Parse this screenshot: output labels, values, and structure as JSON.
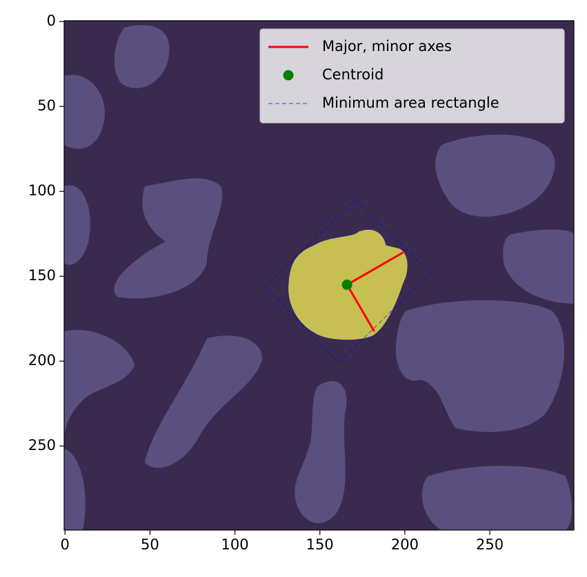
{
  "chart_data": {
    "type": "image-overlay",
    "xlim": [
      -0.5,
      299.5
    ],
    "ylim": [
      299.5,
      -0.5
    ],
    "xticks": [
      0,
      50,
      100,
      150,
      200,
      250
    ],
    "yticks": [
      0,
      50,
      100,
      150,
      200,
      250
    ],
    "legend": "upper right",
    "series": [
      {
        "name": "Major, minor axes",
        "color": "#ff0000",
        "style": "solid",
        "x": [
          182,
          166,
          199
        ],
        "y": [
          182.5,
          155,
          136
        ]
      },
      {
        "name": "Centroid",
        "color": "#008000",
        "style": "marker",
        "x": [
          166
        ],
        "y": [
          155
        ]
      },
      {
        "name": "Minimum area rectangle",
        "color": "#0000ff",
        "style": "dashed",
        "x": [
          171,
          215,
          161,
          118,
          171
        ],
        "y": [
          105,
          148,
          201,
          156,
          105
        ]
      }
    ]
  }
}
